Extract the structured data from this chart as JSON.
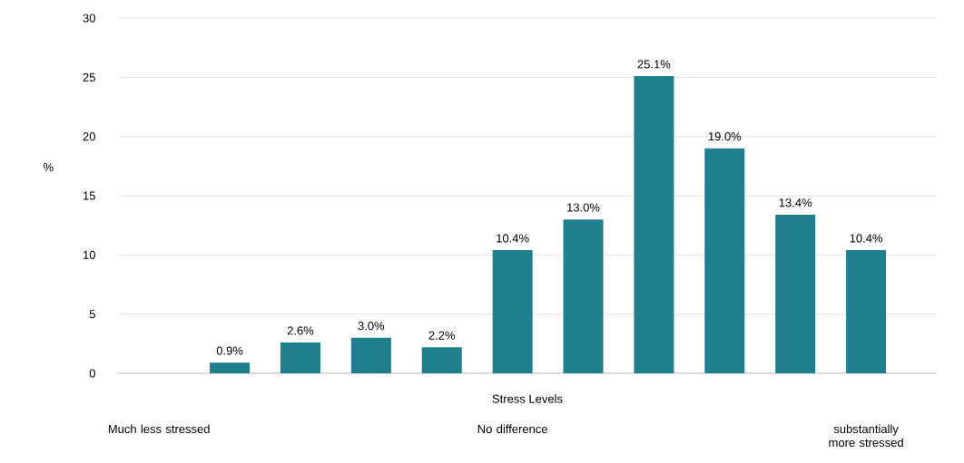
{
  "chart_data": {
    "type": "bar",
    "xlabel": "Stress Levels",
    "ylabel": "%",
    "categories": [
      "Much less stressed",
      null,
      null,
      null,
      null,
      "No difference",
      null,
      null,
      null,
      null,
      "substantially more stressed"
    ],
    "values": [
      null,
      0.9,
      2.6,
      3.0,
      2.2,
      10.4,
      13.0,
      25.1,
      19.0,
      13.4,
      10.4
    ],
    "value_labels": [
      null,
      "0.9%",
      "2.6%",
      "3.0%",
      "2.2%",
      "10.4%",
      "13.0%",
      "25.1%",
      "19.0%",
      "13.4%",
      "10.4%"
    ],
    "color": "#1f7f8c",
    "ylim": [
      0,
      30
    ],
    "yticks": [
      0,
      5,
      10,
      15,
      20,
      25,
      30
    ],
    "grid": "y"
  }
}
